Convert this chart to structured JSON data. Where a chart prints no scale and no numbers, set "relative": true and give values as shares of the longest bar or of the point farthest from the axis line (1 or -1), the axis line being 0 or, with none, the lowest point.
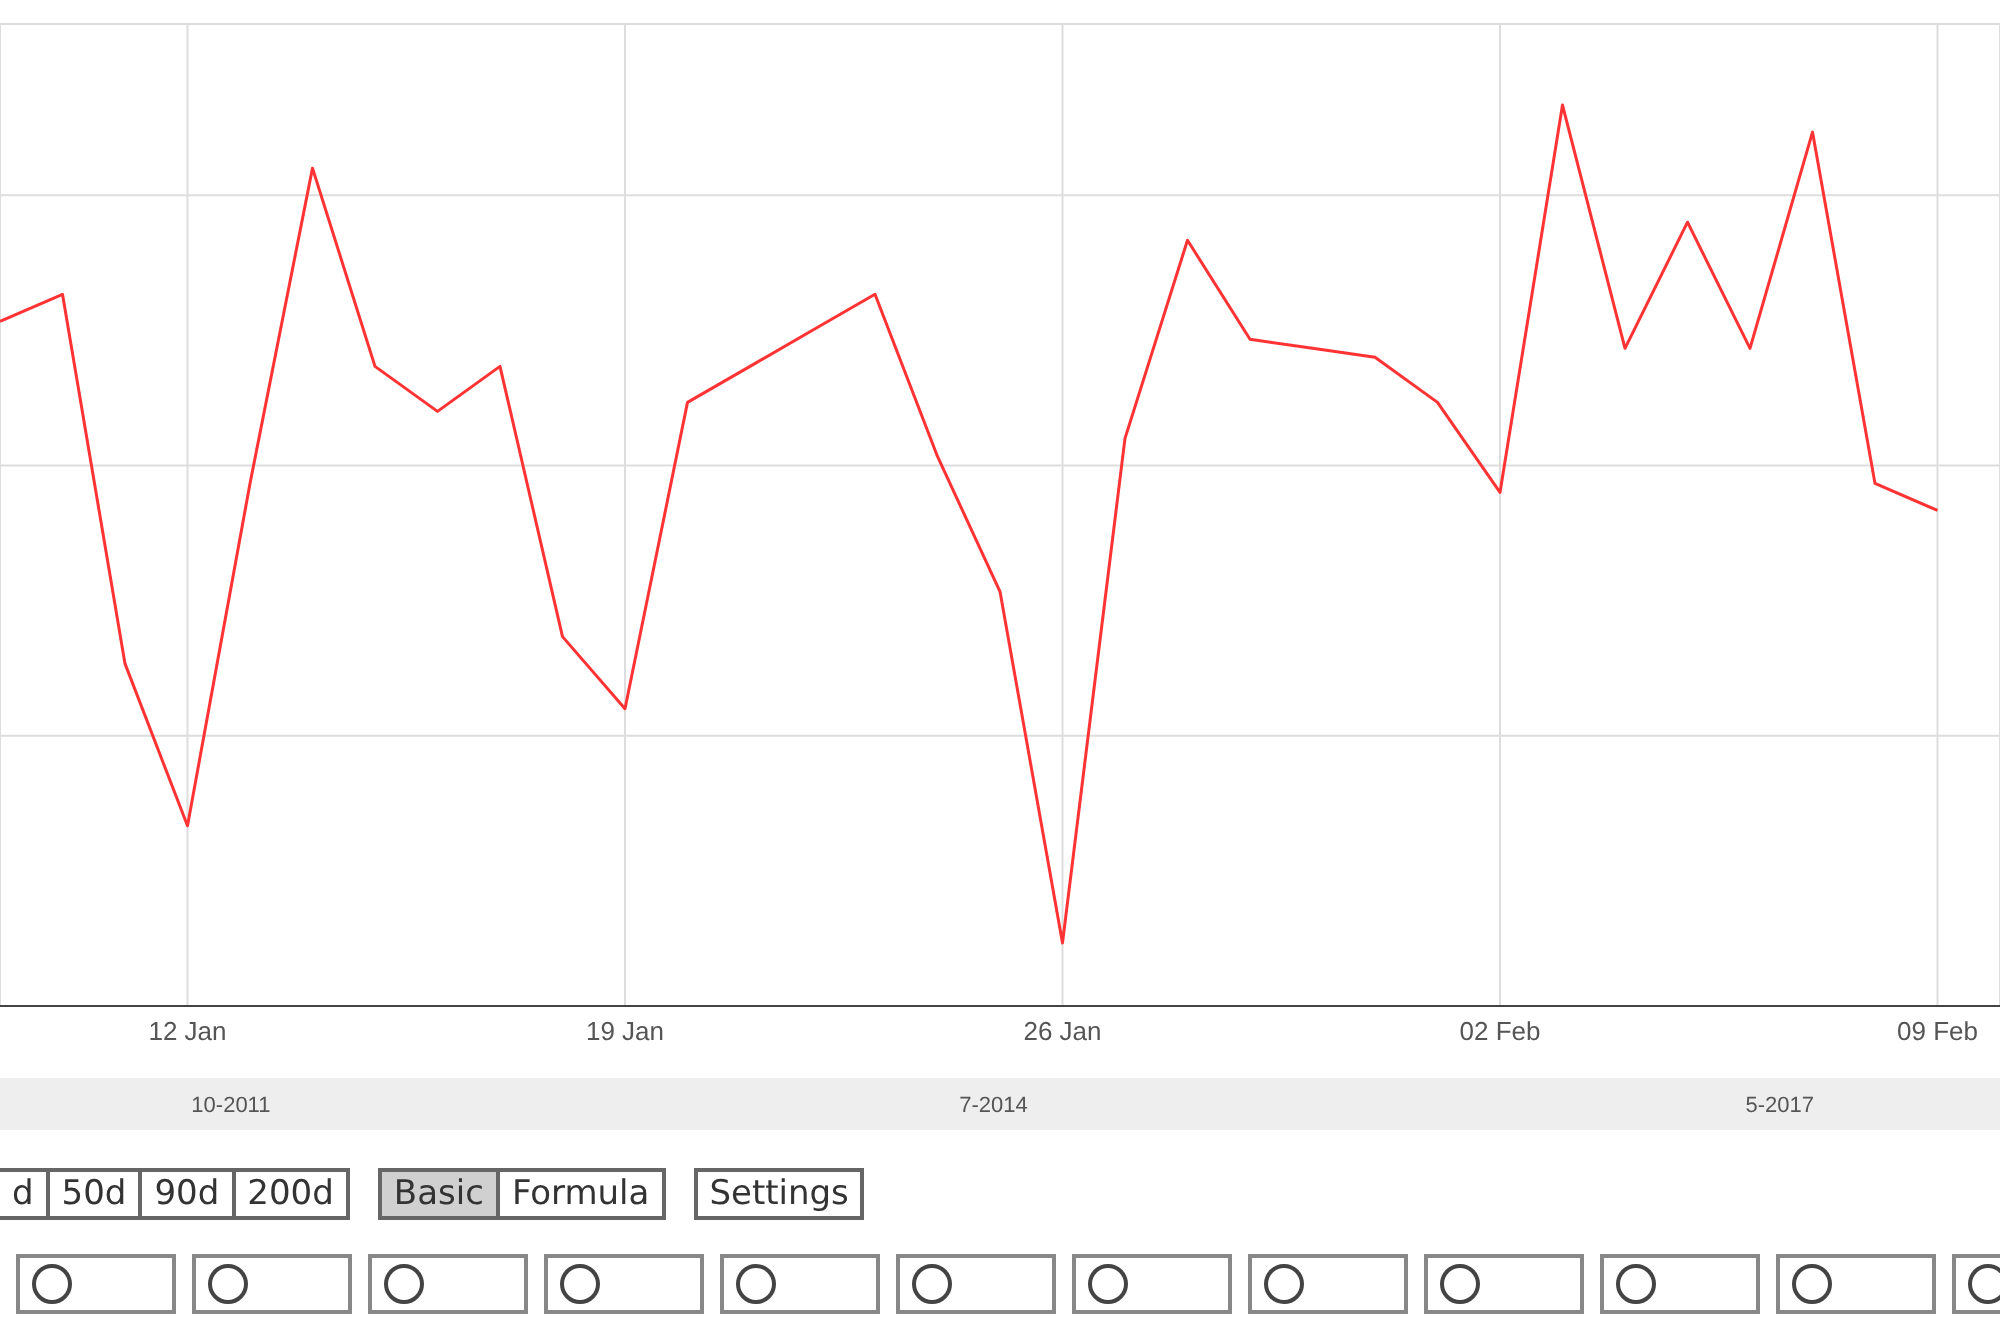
{
  "chart_data": {
    "type": "line",
    "relative": true,
    "x": [
      "--01-09",
      "--01-10",
      "--01-11",
      "--01-12",
      "--01-13",
      "--01-14",
      "--01-15",
      "--01-16",
      "--01-17",
      "--01-18",
      "--01-19",
      "--01-20",
      "--01-21",
      "--01-22",
      "--01-23",
      "--01-24",
      "--01-25",
      "--01-26",
      "--01-27",
      "--01-28",
      "--01-29",
      "--01-30",
      "--01-31",
      "--02-01",
      "--02-02",
      "--02-03",
      "--02-04",
      "--02-05",
      "--02-06",
      "--02-07",
      "--02-08",
      "--02-09"
    ],
    "series": [
      {
        "color": "#ff3333",
        "values": [
          0.76,
          0.79,
          0.38,
          0.2,
          0.58,
          0.93,
          0.71,
          0.66,
          0.71,
          0.41,
          0.33,
          0.67,
          0.71,
          0.75,
          0.79,
          0.61,
          0.46,
          0.07,
          0.63,
          0.85,
          0.74,
          0.73,
          0.72,
          0.67,
          0.57,
          1,
          0.73,
          0.87,
          0.73,
          0.97,
          0.58,
          0.55
        ]
      }
    ],
    "xlim": [
      "--01-09",
      "--02-10"
    ],
    "xticks": [
      {
        "value": "--01-12",
        "label": "12 Jan"
      },
      {
        "value": "--01-19",
        "label": "19 Jan"
      },
      {
        "value": "--01-26",
        "label": "26 Jan"
      },
      {
        "value": "--02-02",
        "label": "02 Feb"
      },
      {
        "value": "--02-09",
        "label": "09 Feb"
      }
    ],
    "x2lim": [
      "2010-12-01",
      "2018-02-15"
    ],
    "x2ticks": [
      {
        "value": "2011-10",
        "label": "10-2011"
      },
      {
        "value": "2014-07",
        "label": "7-2014"
      },
      {
        "value": "2017-05",
        "label": "5-2017"
      }
    ],
    "grid": true,
    "annotations": [
      "d",
      "50d",
      "90d",
      "200d",
      "Basic",
      "Formula",
      "Settings"
    ]
  }
}
